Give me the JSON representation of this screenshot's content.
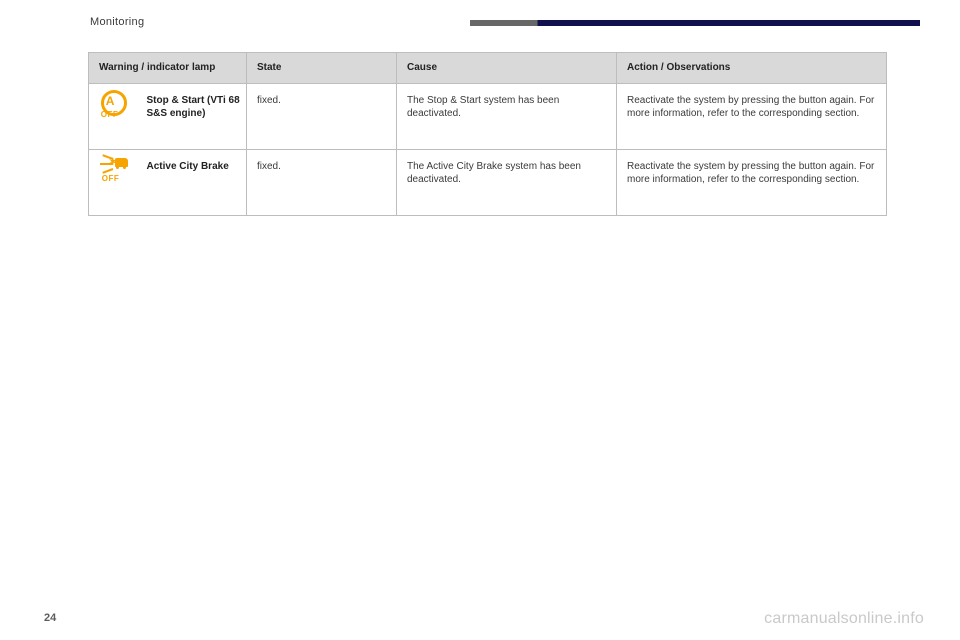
{
  "section_title": "Monitoring",
  "page_number": "24",
  "watermark": "carmanualsonline.info",
  "headers": {
    "lamp": "Warning / indicator lamp",
    "state": "State",
    "cause": "Cause",
    "action": "Action / Observations"
  },
  "rows": [
    {
      "icon": "stop-start-off",
      "name": "Stop & Start (VTi 68 S&S engine)",
      "state": "fixed.",
      "cause": "The Stop & Start system has been deactivated.",
      "action": "Reactivate the system by pressing the button again. For more information, refer to the corresponding section."
    },
    {
      "icon": "active-city-brake-off",
      "name": "Active City Brake",
      "state": "fixed.",
      "cause": "The Active City Brake system has been deactivated.",
      "action": "Reactivate the system by pressing the button again. For more information, refer to the corresponding section."
    }
  ],
  "colors": {
    "icon_amber": "#f5a400",
    "header_bg": "#d9d9d9",
    "border": "#bdbdbd",
    "top_rule_grey": "#676767",
    "top_rule_navy": "#11104f",
    "watermark_grey": "#c9c9c9"
  }
}
